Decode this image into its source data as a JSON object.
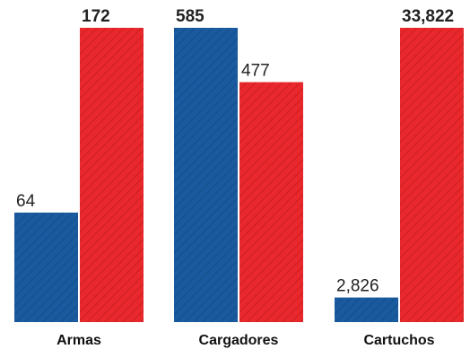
{
  "chart_data": [
    {
      "type": "bar",
      "categories": [
        "Armas"
      ],
      "series": [
        {
          "values": [
            64
          ],
          "color": "#1a5a9e",
          "value_labels": [
            "64"
          ],
          "label_bold": false
        },
        {
          "values": [
            172
          ],
          "color": "#e8282c",
          "value_labels": [
            "172"
          ],
          "label_bold": true
        }
      ],
      "ylim": [
        0,
        172
      ]
    },
    {
      "type": "bar",
      "categories": [
        "Cargadores"
      ],
      "series": [
        {
          "values": [
            585
          ],
          "color": "#1a5a9e",
          "value_labels": [
            "585"
          ],
          "label_bold": true
        },
        {
          "values": [
            477
          ],
          "color": "#e8282c",
          "value_labels": [
            "477"
          ],
          "label_bold": false
        }
      ],
      "ylim": [
        0,
        585
      ]
    },
    {
      "type": "bar",
      "categories": [
        "Cartuchos"
      ],
      "series": [
        {
          "values": [
            2826
          ],
          "color": "#1a5a9e",
          "value_labels": [
            "2,826"
          ],
          "label_bold": false
        },
        {
          "values": [
            33822
          ],
          "color": "#e8282c",
          "value_labels": [
            "33,822"
          ],
          "label_bold": true
        }
      ],
      "ylim": [
        0,
        33822
      ]
    }
  ]
}
